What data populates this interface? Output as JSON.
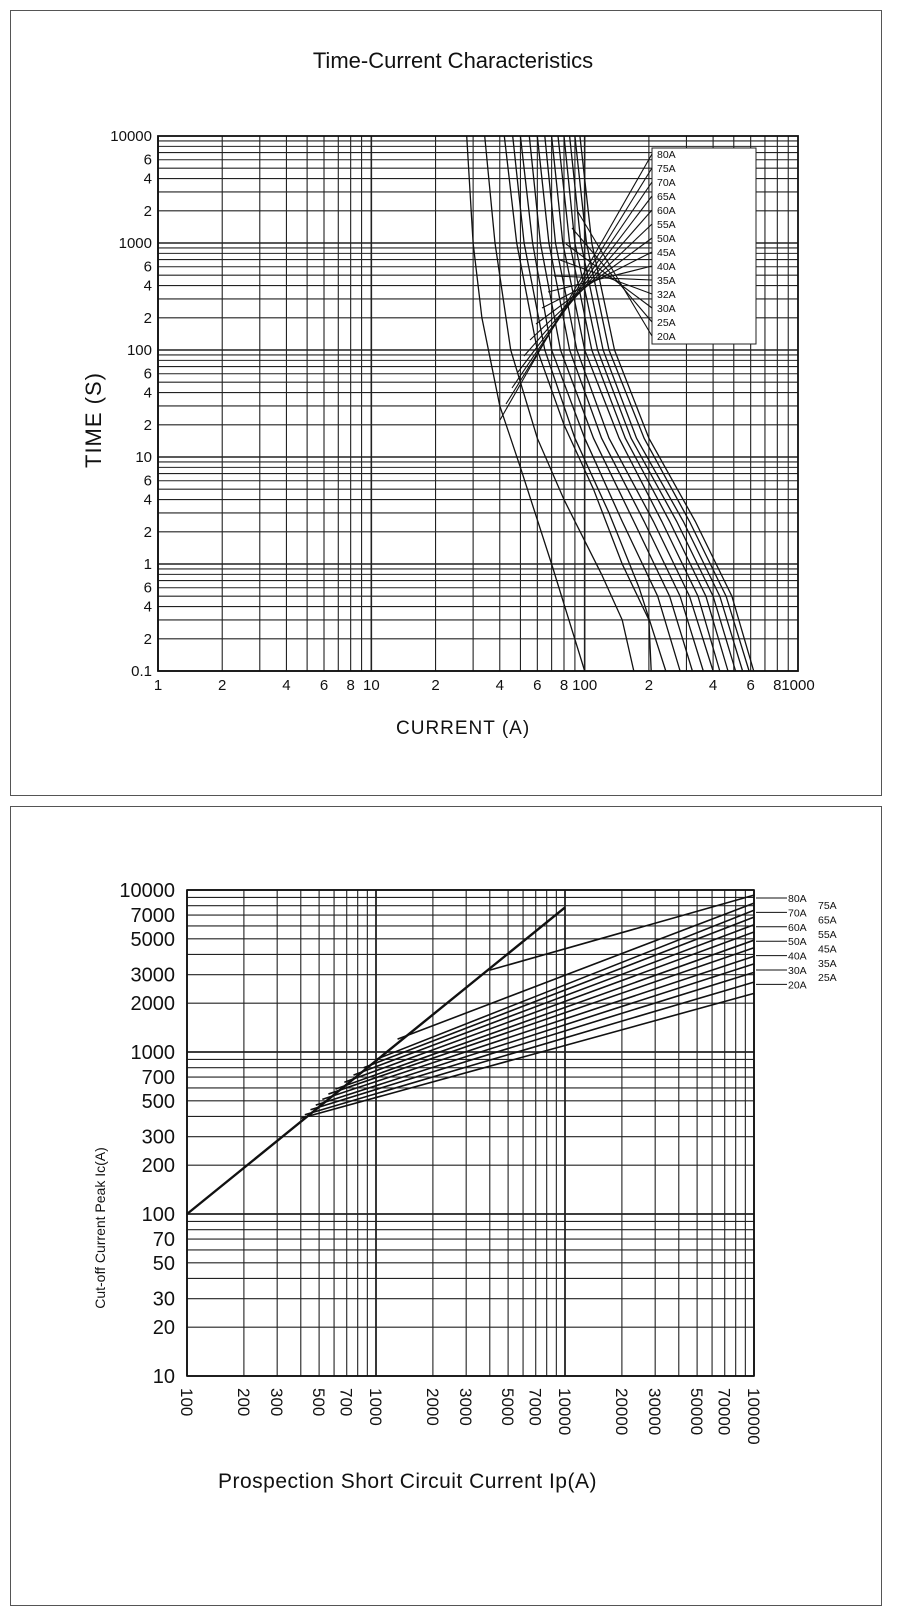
{
  "chart_data": [
    {
      "type": "line",
      "title": "Time-Current Characteristics",
      "xlabel": "CURRENT (A)",
      "ylabel": "TIME (S)",
      "x_scale": "log",
      "y_scale": "log",
      "xlim": [
        1,
        1000
      ],
      "ylim": [
        0.1,
        10000
      ],
      "grid": true,
      "x_tick_labels": [
        {
          "v": 1,
          "t": "1"
        },
        {
          "v": 2,
          "t": "2"
        },
        {
          "v": 4,
          "t": "4"
        },
        {
          "v": 6,
          "t": "6"
        },
        {
          "v": 8,
          "t": "8"
        },
        {
          "v": 10,
          "t": "10"
        },
        {
          "v": 20,
          "t": "2"
        },
        {
          "v": 40,
          "t": "4"
        },
        {
          "v": 60,
          "t": "6"
        },
        {
          "v": 80,
          "t": "8"
        },
        {
          "v": 100,
          "t": "100"
        },
        {
          "v": 200,
          "t": "2"
        },
        {
          "v": 400,
          "t": "4"
        },
        {
          "v": 600,
          "t": "6"
        },
        {
          "v": 800,
          "t": "8"
        },
        {
          "v": 1000,
          "t": "1000"
        }
      ],
      "y_tick_labels": [
        {
          "v": 10000,
          "t": "10000"
        },
        {
          "v": 6000,
          "t": "6"
        },
        {
          "v": 4000,
          "t": "4"
        },
        {
          "v": 2000,
          "t": "2"
        },
        {
          "v": 1000,
          "t": "1000"
        },
        {
          "v": 600,
          "t": "6"
        },
        {
          "v": 400,
          "t": "4"
        },
        {
          "v": 200,
          "t": "2"
        },
        {
          "v": 100,
          "t": "100"
        },
        {
          "v": 60,
          "t": "6"
        },
        {
          "v": 40,
          "t": "4"
        },
        {
          "v": 20,
          "t": "2"
        },
        {
          "v": 10,
          "t": "10"
        },
        {
          "v": 6,
          "t": "6"
        },
        {
          "v": 4,
          "t": "4"
        },
        {
          "v": 2,
          "t": "2"
        },
        {
          "v": 1,
          "t": "1"
        },
        {
          "v": 0.6,
          "t": "6"
        },
        {
          "v": 0.4,
          "t": "4"
        },
        {
          "v": 0.2,
          "t": "2"
        },
        {
          "v": 0.1,
          "t": "0.1"
        }
      ],
      "legend": {
        "placement": "top-right",
        "items": [
          "80A",
          "75A",
          "70A",
          "65A",
          "60A",
          "55A",
          "50A",
          "45A",
          "40A",
          "35A",
          "32A",
          "30A",
          "25A",
          "20A"
        ]
      },
      "series": [
        {
          "name": "20A",
          "x": [
            28,
            30,
            33,
            40,
            50,
            70,
            100
          ],
          "y": [
            10000,
            1000,
            200,
            30,
            8,
            1,
            0.1
          ]
        },
        {
          "name": "25A",
          "x": [
            34,
            38,
            45,
            60,
            80,
            120,
            150,
            170
          ],
          "y": [
            10000,
            1000,
            100,
            15,
            4,
            0.8,
            0.3,
            0.1
          ]
        },
        {
          "name": "30A",
          "x": [
            42,
            48,
            60,
            80,
            110,
            150,
            200,
            205
          ],
          "y": [
            10000,
            1000,
            100,
            20,
            5,
            1,
            0.3,
            0.1
          ]
        },
        {
          "name": "32A",
          "x": [
            46,
            52,
            65,
            90,
            130,
            180,
            240
          ],
          "y": [
            10000,
            1000,
            100,
            15,
            3,
            0.6,
            0.1
          ]
        },
        {
          "name": "35A",
          "x": [
            50,
            57,
            70,
            100,
            150,
            220,
            280
          ],
          "y": [
            10000,
            1000,
            100,
            15,
            2.5,
            0.5,
            0.1
          ]
        },
        {
          "name": "40A",
          "x": [
            55,
            62,
            77,
            110,
            170,
            250,
            320
          ],
          "y": [
            10000,
            1000,
            100,
            15,
            2.5,
            0.5,
            0.1
          ]
        },
        {
          "name": "45A",
          "x": [
            60,
            68,
            85,
            120,
            190,
            280,
            360
          ],
          "y": [
            10000,
            1000,
            100,
            15,
            2.5,
            0.5,
            0.1
          ]
        },
        {
          "name": "50A",
          "x": [
            65,
            73,
            92,
            130,
            210,
            310,
            400
          ],
          "y": [
            10000,
            1000,
            100,
            15,
            2.5,
            0.5,
            0.1
          ]
        },
        {
          "name": "55A",
          "x": [
            70,
            79,
            100,
            145,
            230,
            340,
            430
          ],
          "y": [
            10000,
            1000,
            100,
            15,
            2.5,
            0.5,
            0.1
          ]
        },
        {
          "name": "60A",
          "x": [
            75,
            85,
            108,
            155,
            250,
            370,
            470
          ],
          "y": [
            10000,
            1000,
            100,
            15,
            2.5,
            0.5,
            0.1
          ]
        },
        {
          "name": "65A",
          "x": [
            80,
            90,
            115,
            165,
            270,
            400,
            510
          ],
          "y": [
            10000,
            1000,
            100,
            15,
            2.5,
            0.5,
            0.1
          ]
        },
        {
          "name": "70A",
          "x": [
            85,
            96,
            122,
            175,
            290,
            430,
            550
          ],
          "y": [
            10000,
            1000,
            100,
            15,
            2.5,
            0.5,
            0.1
          ]
        },
        {
          "name": "75A",
          "x": [
            90,
            102,
            130,
            190,
            310,
            460,
            590
          ],
          "y": [
            10000,
            1000,
            100,
            15,
            2.5,
            0.5,
            0.1
          ]
        },
        {
          "name": "80A",
          "x": [
            95,
            108,
            138,
            200,
            330,
            490,
            620
          ],
          "y": [
            10000,
            1000,
            100,
            15,
            2.5,
            0.5,
            0.1
          ]
        }
      ]
    },
    {
      "type": "line",
      "title": "",
      "xlabel": "Prospection Short Circuit Current Ip(A)",
      "ylabel": "Cut-off Current Peak Ic(A)",
      "x_scale": "log",
      "y_scale": "log",
      "xlim": [
        100,
        100000
      ],
      "ylim": [
        10,
        10000
      ],
      "grid": true,
      "x_tick_labels": [
        {
          "v": 100,
          "t": "100"
        },
        {
          "v": 200,
          "t": "200"
        },
        {
          "v": 300,
          "t": "300"
        },
        {
          "v": 500,
          "t": "500"
        },
        {
          "v": 700,
          "t": "700"
        },
        {
          "v": 1000,
          "t": "1000"
        },
        {
          "v": 2000,
          "t": "2000"
        },
        {
          "v": 3000,
          "t": "3000"
        },
        {
          "v": 5000,
          "t": "5000"
        },
        {
          "v": 7000,
          "t": "7000"
        },
        {
          "v": 10000,
          "t": "10000"
        },
        {
          "v": 20000,
          "t": "20000"
        },
        {
          "v": 30000,
          "t": "30000"
        },
        {
          "v": 50000,
          "t": "50000"
        },
        {
          "v": 70000,
          "t": "70000"
        },
        {
          "v": 100000,
          "t": "100000"
        }
      ],
      "y_tick_labels": [
        {
          "v": 10000,
          "t": "10000"
        },
        {
          "v": 7000,
          "t": "7000"
        },
        {
          "v": 5000,
          "t": "5000"
        },
        {
          "v": 3000,
          "t": "3000"
        },
        {
          "v": 2000,
          "t": "2000"
        },
        {
          "v": 1000,
          "t": "1000"
        },
        {
          "v": 700,
          "t": "700"
        },
        {
          "v": 500,
          "t": "500"
        },
        {
          "v": 300,
          "t": "300"
        },
        {
          "v": 200,
          "t": "200"
        },
        {
          "v": 100,
          "t": "100"
        },
        {
          "v": 70,
          "t": "70"
        },
        {
          "v": 50,
          "t": "50"
        },
        {
          "v": 30,
          "t": "30"
        },
        {
          "v": 20,
          "t": "20"
        },
        {
          "v": 10,
          "t": "10"
        }
      ],
      "legend": {
        "placement": "right",
        "items": [
          "80A",
          "75A",
          "70A",
          "65A",
          "60A",
          "55A",
          "50A",
          "45A",
          "40A",
          "35A",
          "30A",
          "25A",
          "20A"
        ]
      },
      "reference_line": {
        "x": [
          100,
          10000
        ],
        "y": [
          100,
          7800
        ]
      },
      "series": [
        {
          "name": "20A",
          "x": [
            400,
            100000
          ],
          "y": [
            390,
            2300
          ]
        },
        {
          "name": "25A",
          "x": [
            420,
            100000
          ],
          "y": [
            410,
            2700
          ]
        },
        {
          "name": "30A",
          "x": [
            450,
            100000
          ],
          "y": [
            440,
            3100
          ]
        },
        {
          "name": "35A",
          "x": [
            480,
            100000
          ],
          "y": [
            470,
            3500
          ]
        },
        {
          "name": "40A",
          "x": [
            520,
            100000
          ],
          "y": [
            510,
            3900
          ]
        },
        {
          "name": "45A",
          "x": [
            560,
            100000
          ],
          "y": [
            550,
            4400
          ]
        },
        {
          "name": "50A",
          "x": [
            610,
            100000
          ],
          "y": [
            590,
            4900
          ]
        },
        {
          "name": "55A",
          "x": [
            680,
            100000
          ],
          "y": [
            650,
            5500
          ]
        },
        {
          "name": "60A",
          "x": [
            760,
            100000
          ],
          "y": [
            720,
            6100
          ]
        },
        {
          "name": "65A",
          "x": [
            860,
            100000
          ],
          "y": [
            800,
            6800
          ]
        },
        {
          "name": "70A",
          "x": [
            1000,
            100000
          ],
          "y": [
            900,
            7500
          ]
        },
        {
          "name": "75A",
          "x": [
            1300,
            100000
          ],
          "y": [
            1200,
            8300
          ]
        },
        {
          "name": "80A",
          "x": [
            4000,
            100000
          ],
          "y": [
            3200,
            9300
          ]
        }
      ]
    }
  ]
}
